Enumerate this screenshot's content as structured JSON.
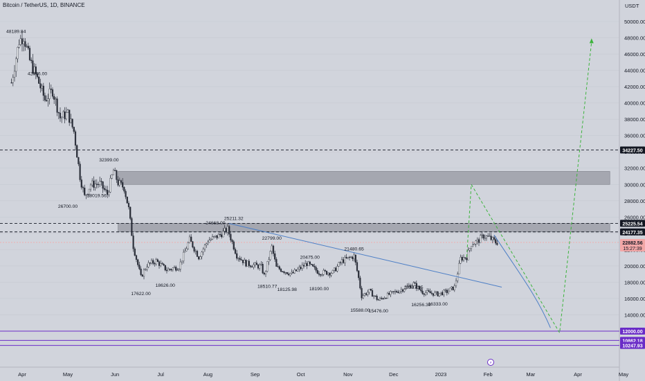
{
  "header": {
    "title": "Bitcoin / TetherUS, 1D, BINANCE",
    "currency": "USDT"
  },
  "colors": {
    "bg": "#d1d4dc",
    "up": "#f7f8fa",
    "down": "#2a2e39",
    "trendline": "#4d7fc6",
    "projection": "#3bb33b",
    "curve": "#4d7fc6",
    "zone": "#9598a1",
    "purple": "#6a2cc7",
    "text": "#131722",
    "crosshair": "#f2a7a7"
  },
  "chart_data": {
    "type": "candlestick",
    "symbol": "BTCUSDT",
    "interval": "1D",
    "exchange": "BINANCE",
    "ylim": [
      10000,
      52000
    ],
    "y_ticks": [
      12000,
      14000,
      16000,
      18000,
      20000,
      22000,
      24000,
      26000,
      28000,
      30000,
      32000,
      34000,
      36000,
      38000,
      40000,
      42000,
      44000,
      46000,
      48000,
      50000
    ],
    "y_tick_labels": [
      "12000.00",
      "14000.00",
      "16000.00",
      "18000.00",
      "20000.00",
      "22000.00",
      "24000.00",
      "26000.00",
      "28000.00",
      "30000.00",
      "32000.00",
      "34000.00",
      "36000.00",
      "38000.00",
      "40000.00",
      "42000.00",
      "44000.00",
      "46000.00",
      "48000.00",
      "50000.00"
    ],
    "x_ticks": [
      "Apr",
      "May",
      "Jun",
      "Jul",
      "Aug",
      "Sep",
      "Oct",
      "Nov",
      "Dec",
      "2023",
      "Feb",
      "Mar",
      "Apr",
      "May"
    ],
    "price_anchors": [
      [
        "2022-03-25",
        42500
      ],
      [
        "2022-03-30",
        47600
      ],
      [
        "2022-04-02",
        48189.84
      ],
      [
        "2022-04-06",
        45200
      ],
      [
        "2022-04-11",
        42976
      ],
      [
        "2022-04-16",
        40400
      ],
      [
        "2022-04-21",
        41500
      ],
      [
        "2022-04-26",
        38200
      ],
      [
        "2022-05-01",
        38700
      ],
      [
        "2022-05-05",
        36500
      ],
      [
        "2022-05-09",
        31000
      ],
      [
        "2022-05-12",
        28500
      ],
      [
        "2022-05-16",
        30000
      ],
      [
        "2022-05-22",
        30100
      ],
      [
        "2022-05-27",
        28800
      ],
      [
        "2022-05-31",
        31700
      ],
      [
        "2022-06-03",
        30200
      ],
      [
        "2022-06-07",
        29600
      ],
      [
        "2022-06-10",
        27000
      ],
      [
        "2022-06-13",
        22400
      ],
      [
        "2022-06-18",
        18626
      ],
      [
        "2022-06-22",
        20100
      ],
      [
        "2022-06-28",
        20600
      ],
      [
        "2022-07-05",
        19500
      ],
      [
        "2022-07-13",
        19900
      ],
      [
        "2022-07-20",
        23200
      ],
      [
        "2022-07-26",
        21100
      ],
      [
        "2022-08-01",
        23100
      ],
      [
        "2022-08-08",
        23700
      ],
      [
        "2022-08-14",
        24500
      ],
      [
        "2022-08-20",
        21300
      ],
      [
        "2022-08-26",
        20300
      ],
      [
        "2022-09-05",
        19900
      ],
      [
        "2022-09-07",
        18800
      ],
      [
        "2022-09-12",
        22300
      ],
      [
        "2022-09-15",
        19800
      ],
      [
        "2022-09-25",
        19000
      ],
      [
        "2022-10-05",
        20300
      ],
      [
        "2022-10-13",
        19200
      ],
      [
        "2022-10-22",
        19200
      ],
      [
        "2022-10-28",
        20600
      ],
      [
        "2022-11-05",
        21200
      ],
      [
        "2022-11-08",
        18500
      ],
      [
        "2022-11-10",
        16300
      ],
      [
        "2022-11-15",
        16900
      ],
      [
        "2022-11-21",
        15800
      ],
      [
        "2022-11-28",
        16500
      ],
      [
        "2022-12-05",
        17000
      ],
      [
        "2022-12-14",
        17800
      ],
      [
        "2022-12-20",
        16800
      ],
      [
        "2022-12-30",
        16550
      ],
      [
        "2023-01-05",
        16850
      ],
      [
        "2023-01-10",
        17400
      ],
      [
        "2023-01-14",
        20900
      ],
      [
        "2023-01-18",
        21100
      ],
      [
        "2023-01-21",
        22700
      ],
      [
        "2023-01-25",
        23000
      ],
      [
        "2023-01-29",
        23700
      ],
      [
        "2023-02-02",
        23450
      ],
      [
        "2023-02-06",
        22900
      ],
      [
        "2023-02-08",
        22882.56
      ]
    ],
    "labels": [
      {
        "date": "2022-03-28",
        "price": 48189.84,
        "text": "48189.84"
      },
      {
        "date": "2022-04-11",
        "price": 42976.0,
        "text": "42976.00"
      },
      {
        "date": "2022-05-28",
        "price": 32399.0,
        "text": "32399.00"
      },
      {
        "date": "2022-05-20",
        "price": 28019.56,
        "text": "28019.56"
      },
      {
        "date": "2022-05-01",
        "price": 26700.0,
        "text": "26700.00"
      },
      {
        "date": "2022-06-18",
        "price": 17622.0,
        "text": "17622.00"
      },
      {
        "date": "2022-07-04",
        "price": 18626.0,
        "text": "18626.00"
      },
      {
        "date": "2022-08-06",
        "price": 24668.0,
        "text": "24668.00"
      },
      {
        "date": "2022-08-18",
        "price": 25211.32,
        "text": "25211.32"
      },
      {
        "date": "2022-09-12",
        "price": 22799.0,
        "text": "22799.00"
      },
      {
        "date": "2022-09-09",
        "price": 18510.77,
        "text": "18510.77"
      },
      {
        "date": "2022-09-22",
        "price": 18125.98,
        "text": "18125.98"
      },
      {
        "date": "2022-10-07",
        "price": 20475.0,
        "text": "20475.00"
      },
      {
        "date": "2022-10-13",
        "price": 18190.0,
        "text": "18190.00"
      },
      {
        "date": "2022-11-05",
        "price": 21480.65,
        "text": "21480.65"
      },
      {
        "date": "2022-11-09",
        "price": 15588.0,
        "text": "15588.00"
      },
      {
        "date": "2022-11-21",
        "price": 15476.0,
        "text": "15476.00"
      },
      {
        "date": "2022-12-14",
        "price": 18387.95,
        "text": "18387.95"
      },
      {
        "date": "2022-12-19",
        "price": 16256.3,
        "text": "16256.30"
      },
      {
        "date": "2022-12-30",
        "price": 16333.0,
        "text": "16333.00"
      }
    ],
    "horizontal_levels": [
      {
        "price": 34227.5,
        "label": "34227.50",
        "style": "dashed",
        "color": "#131722"
      },
      {
        "price": 25225.54,
        "label": "25225.54",
        "style": "dashed",
        "color": "#131722"
      },
      {
        "price": 24177.35,
        "label": "24177.35",
        "style": "dashed",
        "color": "#131722"
      },
      {
        "price": 22882.56,
        "label": "22882.56",
        "style": "dotted",
        "color": "#f2a7a7"
      },
      {
        "price": 12000.0,
        "label": "12000.00",
        "style": "solid",
        "color": "#6a2cc7"
      },
      {
        "price": 10862.18,
        "label": "10862.18",
        "style": "solid",
        "color": "#6a2cc7"
      },
      {
        "price": 10247.93,
        "label": "10247.93",
        "style": "solid",
        "color": "#6a2cc7"
      }
    ],
    "price_tag_secondary": "15:27:39",
    "zones": [
      {
        "from": "2022-06-03",
        "to": "2023-04-22",
        "top": 31600,
        "bottom": 30000
      },
      {
        "from": "2022-06-03",
        "to": "2023-04-22",
        "top": 25225.54,
        "bottom": 24177.35
      }
    ],
    "trendline": {
      "start": [
        "2022-08-15",
        25211.32
      ],
      "end": [
        "2023-02-10",
        17400
      ]
    },
    "projection_path": [
      [
        "2023-01-18",
        21100
      ],
      [
        "2023-01-21",
        30000
      ],
      [
        "2023-03-20",
        11800
      ],
      [
        "2023-04-10",
        47500
      ]
    ],
    "curve_path": [
      [
        "2023-02-05",
        23800
      ],
      [
        "2023-02-20",
        19000
      ],
      [
        "2023-03-05",
        15500
      ],
      [
        "2023-03-14",
        12400
      ]
    ]
  }
}
